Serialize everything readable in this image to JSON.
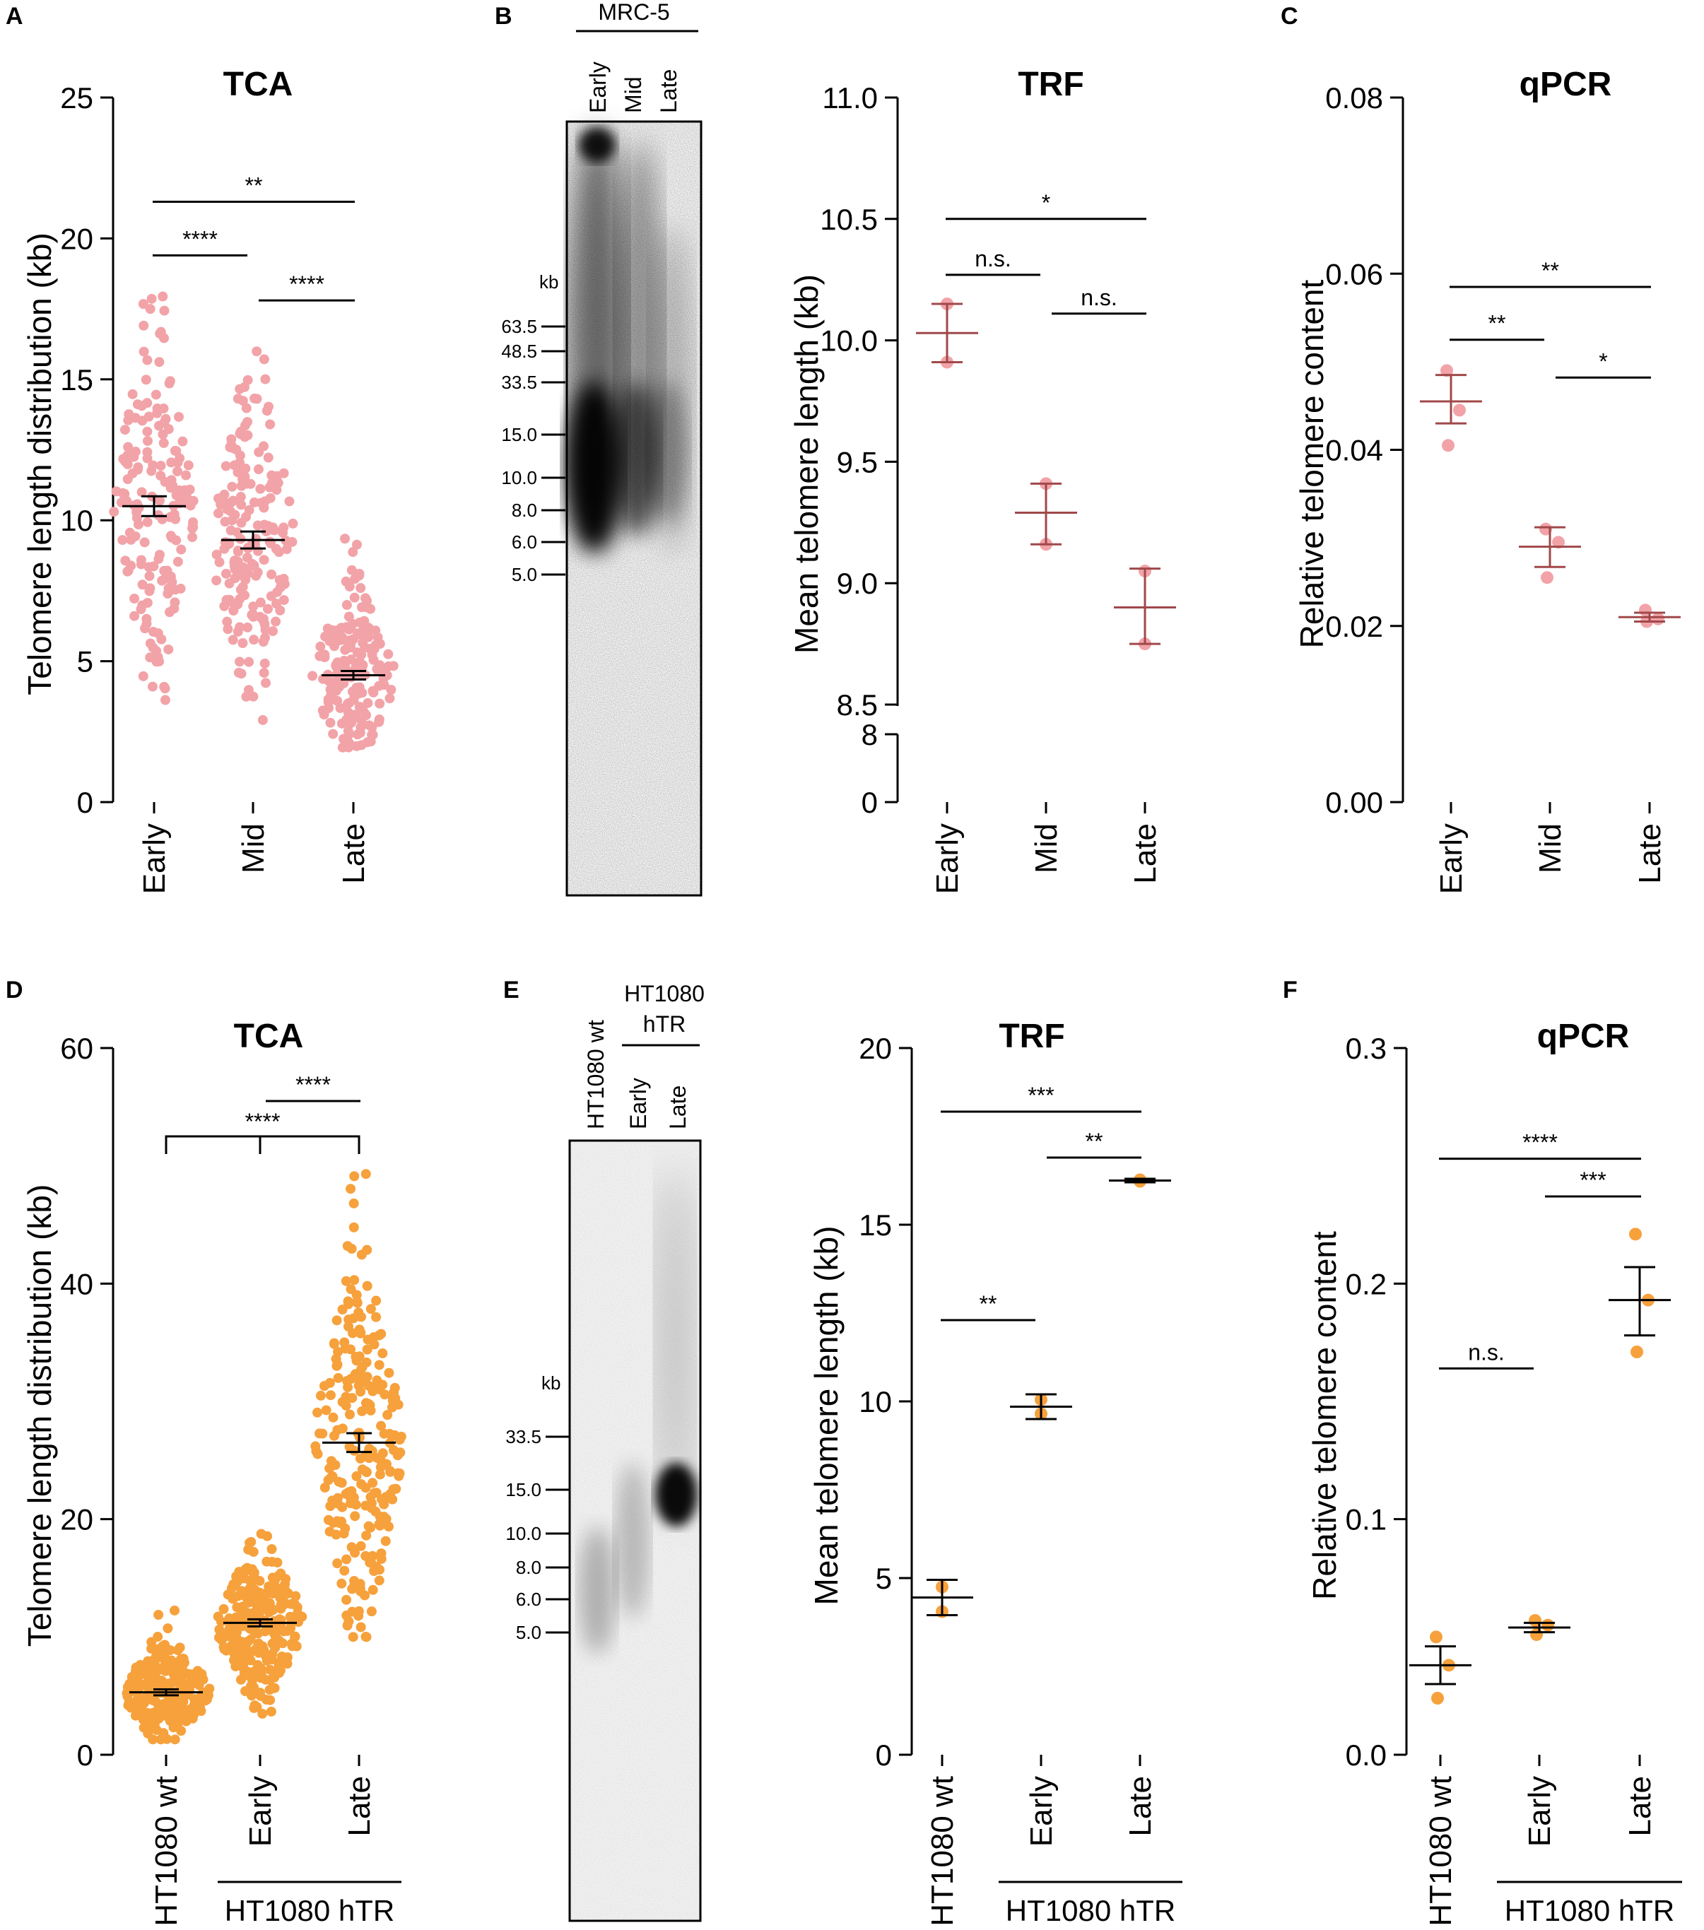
{
  "figure": {
    "colors": {
      "pink": "#f2a3a8",
      "orange": "#f6a13c",
      "errorbar_early": "#d06a6a",
      "line": "#000000"
    }
  },
  "chart_data": [
    {
      "id": "A",
      "type": "scatter",
      "title": "TCA",
      "ylabel": "Telomere length distribution (kb)",
      "categories": [
        "Early",
        "Mid",
        "Late"
      ],
      "ylim": [
        0,
        25
      ],
      "yticks": [
        "0",
        "5",
        "10",
        "15",
        "20",
        "25"
      ],
      "series": [
        {
          "name": "Early",
          "mean": 10.5,
          "sem": 0.35,
          "min": 3.2,
          "max": 18.5,
          "n": 170
        },
        {
          "name": "Mid",
          "mean": 9.3,
          "sem": 0.3,
          "min": 2.3,
          "max": 16.6,
          "n": 190
        },
        {
          "name": "Late",
          "mean": 4.5,
          "sem": 0.15,
          "min": 1.9,
          "max": 9.7,
          "n": 180
        }
      ],
      "significance": [
        {
          "from": "Early",
          "to": "Late",
          "label": "**",
          "y": 21.3
        },
        {
          "from": "Early",
          "to": "Mid",
          "label": "****",
          "y": 19.4
        },
        {
          "from": "Mid",
          "to": "Late",
          "label": "****",
          "y": 17.8
        }
      ]
    },
    {
      "id": "B",
      "type": "scatter",
      "title": "TRF",
      "ylabel": "Mean telomere length (kb)",
      "categories": [
        "Early",
        "Mid",
        "Late"
      ],
      "ylim": [
        8.5,
        11.0
      ],
      "yticks": [
        "8",
        "8.5",
        "9.0",
        "9.5",
        "10.0",
        "10.5",
        "11.0"
      ],
      "axis_break": {
        "below": "8.5",
        "bottom": "0"
      },
      "series": [
        {
          "name": "Early",
          "mean": 10.03,
          "upper": 10.15,
          "lower": 9.91,
          "points": [
            10.15,
            9.91
          ]
        },
        {
          "name": "Mid",
          "mean": 9.29,
          "upper": 9.41,
          "lower": 9.16,
          "points": [
            9.41,
            9.16
          ]
        },
        {
          "name": "Late",
          "mean": 8.9,
          "upper": 9.06,
          "lower": 8.75,
          "points": [
            9.05,
            8.75
          ]
        }
      ],
      "significance": [
        {
          "from": "Early",
          "to": "Late",
          "label": "*",
          "y": 10.5
        },
        {
          "from": "Early",
          "to": "Mid",
          "label": "n.s.",
          "y": 10.27
        },
        {
          "from": "Mid",
          "to": "Late",
          "label": "n.s.",
          "y": 10.11
        }
      ]
    },
    {
      "id": "C",
      "type": "scatter",
      "title": "qPCR",
      "ylabel": "Relative telomere content",
      "categories": [
        "Early",
        "Mid",
        "Late"
      ],
      "ylim": [
        0,
        0.08
      ],
      "yticks": [
        "0.00",
        "0.02",
        "0.04",
        "0.06",
        "0.08"
      ],
      "series": [
        {
          "name": "Early",
          "mean": 0.0455,
          "upper": 0.0485,
          "lower": 0.043,
          "points": [
            0.049,
            0.0445,
            0.0405
          ]
        },
        {
          "name": "Mid",
          "mean": 0.029,
          "upper": 0.0312,
          "lower": 0.0267,
          "points": [
            0.031,
            0.0295,
            0.0255
          ]
        },
        {
          "name": "Late",
          "mean": 0.021,
          "upper": 0.0215,
          "lower": 0.0205,
          "points": [
            0.0218,
            0.0208,
            0.0205
          ]
        }
      ],
      "significance": [
        {
          "from": "Early",
          "to": "Late",
          "label": "**",
          "y": 0.0585
        },
        {
          "from": "Early",
          "to": "Mid",
          "label": "**",
          "y": 0.0525
        },
        {
          "from": "Mid",
          "to": "Late",
          "label": "*",
          "y": 0.0482
        }
      ]
    },
    {
      "id": "D",
      "type": "scatter",
      "title": "TCA",
      "ylabel": "Telomere length distribution (kb)",
      "categories": [
        "HT1080 wt",
        "Early",
        "Late"
      ],
      "ylim": [
        0,
        60
      ],
      "yticks": [
        "0",
        "20",
        "40",
        "60"
      ],
      "group_label": "HT1080 hTR",
      "series": [
        {
          "name": "HT1080 wt",
          "mean": 5.3,
          "sem": 0.25,
          "min": 1.3,
          "max": 12.6,
          "n": 230
        },
        {
          "name": "Early",
          "mean": 11.2,
          "sem": 0.3,
          "min": 3.3,
          "max": 19.5,
          "n": 260
        },
        {
          "name": "Late",
          "mean": 26.5,
          "sem": 0.8,
          "min": 10.0,
          "max": 50.0,
          "n": 240
        }
      ],
      "significance": [
        {
          "from": "Early",
          "to": "Late",
          "label": "****",
          "y": 55.5
        },
        {
          "from": "HT1080 wt",
          "to": "Late",
          "label": "****",
          "y": 52.5,
          "bracket": true
        }
      ]
    },
    {
      "id": "E",
      "type": "scatter",
      "title": "TRF",
      "ylabel": "Mean telomere length (kb)",
      "categories": [
        "HT1080 wt",
        "Early",
        "Late"
      ],
      "ylim": [
        0,
        20
      ],
      "yticks": [
        "0",
        "5",
        "10",
        "15",
        "20"
      ],
      "group_label": "HT1080 hTR",
      "series": [
        {
          "name": "HT1080 wt",
          "mean": 4.45,
          "upper": 4.95,
          "lower": 3.95,
          "points": [
            4.75,
            4.05
          ]
        },
        {
          "name": "Early",
          "mean": 9.85,
          "upper": 10.2,
          "lower": 9.5,
          "points": [
            10.05,
            9.65
          ]
        },
        {
          "name": "Late",
          "mean": 16.25,
          "upper": 16.3,
          "lower": 16.2,
          "points": [
            16.27,
            16.23
          ]
        }
      ],
      "significance": [
        {
          "from": "HT1080 wt",
          "to": "Late",
          "label": "***",
          "y": 18.2
        },
        {
          "from": "Early",
          "to": "Late",
          "label": "**",
          "y": 16.9
        },
        {
          "from": "HT1080 wt",
          "to": "Early",
          "label": "**",
          "y": 12.3
        }
      ]
    },
    {
      "id": "F",
      "type": "scatter",
      "title": "qPCR",
      "ylabel": "Relative telomere content",
      "categories": [
        "HT1080 wt",
        "Early",
        "Late"
      ],
      "ylim": [
        0,
        0.3
      ],
      "yticks": [
        "0.0",
        "0.1",
        "0.2",
        "0.3"
      ],
      "group_label": "HT1080 hTR",
      "series": [
        {
          "name": "HT1080 wt",
          "mean": 0.038,
          "upper": 0.046,
          "lower": 0.03,
          "points": [
            0.05,
            0.038,
            0.024
          ]
        },
        {
          "name": "Early",
          "mean": 0.054,
          "upper": 0.056,
          "lower": 0.052,
          "points": [
            0.057,
            0.055,
            0.051
          ]
        },
        {
          "name": "Late",
          "mean": 0.193,
          "upper": 0.207,
          "lower": 0.178,
          "points": [
            0.221,
            0.193,
            0.171
          ]
        }
      ],
      "significance": [
        {
          "from": "HT1080 wt",
          "to": "Late",
          "label": "****",
          "y": 0.253
        },
        {
          "from": "Early",
          "to": "Late",
          "label": "***",
          "y": 0.237
        },
        {
          "from": "HT1080 wt",
          "to": "Early",
          "label": "n.s.",
          "y": 0.164
        }
      ]
    }
  ],
  "gels": [
    {
      "id": "B",
      "header": "MRC-5",
      "lanes": [
        "Early",
        "Mid",
        "Late"
      ],
      "unit": "kb",
      "markers": [
        "63.5",
        "48.5",
        "33.5",
        "15.0",
        "10.0",
        "8.0",
        "6.0",
        "5.0"
      ]
    },
    {
      "id": "E",
      "header_lines": [
        "HT1080",
        "hTR"
      ],
      "lanes": [
        "HT1080 wt",
        "Early",
        "Late"
      ],
      "unit": "kb",
      "markers": [
        "33.5",
        "15.0",
        "10.0",
        "8.0",
        "6.0",
        "5.0"
      ]
    }
  ],
  "panel_letters": [
    "A",
    "B",
    "C",
    "D",
    "E",
    "F"
  ]
}
